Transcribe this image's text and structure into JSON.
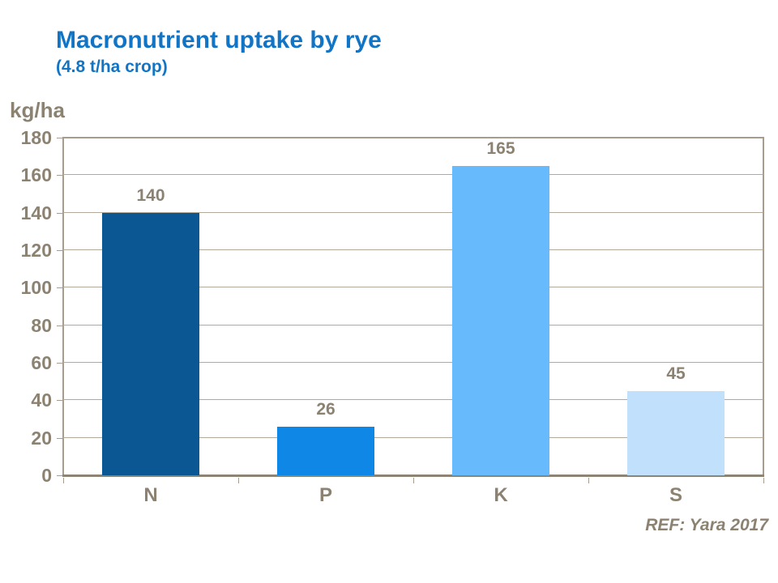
{
  "title": "Macronutrient uptake by rye",
  "subtitle": "(4.8 t/ha crop)",
  "y_axis_unit": "kg/ha",
  "ref_note": "REF: Yara 2017",
  "colors": {
    "title_blue": "#1274C5",
    "axis_text_brown": "#8C8271",
    "gridline": "#B3A99A",
    "plot_border": "#A79D8E",
    "bottom_axis": "#8E8474",
    "bar_n": "#0B5794",
    "bar_p": "#0E87E7",
    "bar_k": "#67BAFB",
    "bar_s": "#C0E0FB"
  },
  "chart_data": {
    "type": "bar",
    "title": "Macronutrient uptake by rye",
    "subtitle": "(4.8 t/ha crop)",
    "ylabel": "kg/ha",
    "xlabel": "",
    "categories": [
      "N",
      "P",
      "K",
      "S"
    ],
    "values": [
      140,
      26,
      165,
      45
    ],
    "data_labels": [
      "140",
      "26",
      "165",
      "45"
    ],
    "bar_colors": [
      "#0B5794",
      "#0E87E7",
      "#67BAFB",
      "#C0E0FB"
    ],
    "ylim": [
      0,
      180
    ],
    "ytick_step": 20,
    "y_ticks": [
      "180",
      "160",
      "140",
      "120",
      "100",
      "80",
      "60",
      "40",
      "20",
      "0"
    ],
    "grid": true,
    "legend": false,
    "annotation": "REF: Yara 2017"
  }
}
